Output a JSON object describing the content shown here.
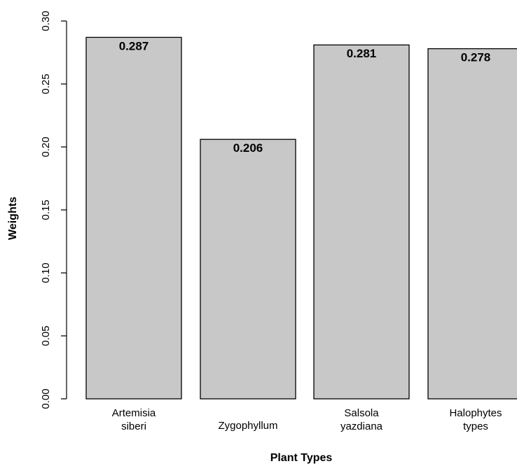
{
  "chart_data": {
    "type": "bar",
    "categories": [
      [
        "Artemisia",
        "siberi"
      ],
      [
        "Zygophyllum"
      ],
      [
        "Salsola",
        "yazdiana"
      ],
      [
        "Halophytes",
        "types"
      ]
    ],
    "values": [
      0.287,
      0.206,
      0.281,
      0.278
    ],
    "value_labels": [
      "0.287",
      "0.206",
      "0.281",
      "0.278"
    ],
    "xlabel": "Plant Types",
    "ylabel": "Weights",
    "ylim": [
      0,
      0.3
    ],
    "yticks": [
      0.0,
      0.05,
      0.1,
      0.15,
      0.2,
      0.25,
      0.3
    ],
    "ytick_labels": [
      "0.00",
      "0.05",
      "0.10",
      "0.15",
      "0.20",
      "0.25",
      "0.30"
    ],
    "grid": false,
    "bar_color": "#c8c8c8",
    "edge_color": "#000000"
  }
}
